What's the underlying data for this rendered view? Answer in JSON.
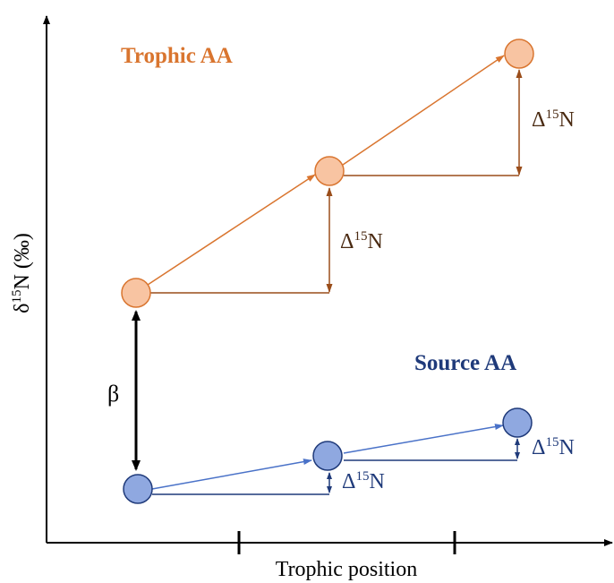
{
  "diagram": {
    "title": "",
    "axes": {
      "y_label_main": "δ",
      "y_label_sup": "15",
      "y_label_rest": "N (‰)",
      "x_label": "Trophic position"
    },
    "trophic": {
      "label": "Trophic AA",
      "color_fill": "#f8c4a2",
      "color_stroke": "#d9752f",
      "color_label": "#d9752f",
      "color_arrow": "#d9752f",
      "color_step": "#9a4d1a",
      "delta_1": {
        "main": "Δ",
        "sup": "15",
        "rest": "N"
      },
      "delta_2": {
        "main": "Δ",
        "sup": "15",
        "rest": "N"
      }
    },
    "source": {
      "label": "Source AA",
      "color_fill": "#8fa8e0",
      "color_stroke": "#1f3a7a",
      "color_label": "#1f3a7a",
      "color_arrow": "#4a72c8",
      "color_step": "#1f3a7a",
      "delta_1": {
        "main": "Δ",
        "sup": "15",
        "rest": "N"
      },
      "delta_2": {
        "main": "Δ",
        "sup": "15",
        "rest": "N"
      }
    },
    "beta": {
      "label": "β",
      "color": "#000000"
    }
  }
}
